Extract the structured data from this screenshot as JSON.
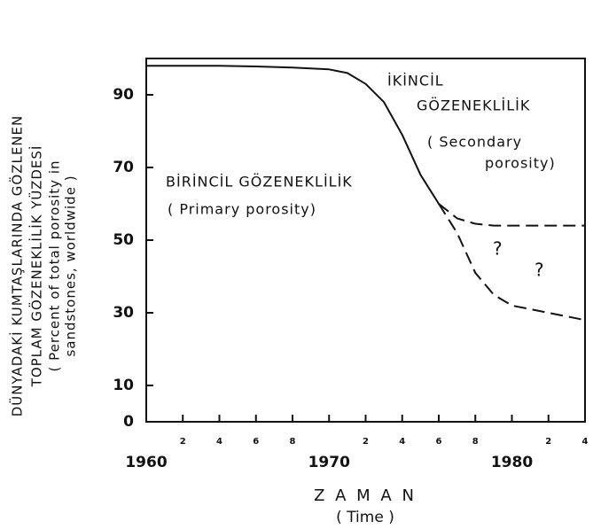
{
  "chart_data": {
    "type": "line",
    "y_axis_label": [
      "DÜNYADAKİ KUMTAŞLARINDA GÖZLENEN",
      "TOPLAM GÖZENEKLİLİK YÜZDESİ",
      "( Percent of total porosity in",
      "sandstones, worldwide )"
    ],
    "x_axis_label": [
      "Z A M A N",
      "( Time )"
    ],
    "annotations": [
      "İKİNCİL",
      "GÖZENEKLİLİK",
      "( Secondary",
      "porosity)",
      "BİRİNCİL GÖZENEKLİLİK",
      "( Primary porosity)",
      "?",
      "?"
    ],
    "x": [
      1960,
      1962,
      1964,
      1966,
      1968,
      1970,
      1971,
      1972,
      1973,
      1974,
      1975,
      1976,
      1977,
      1978,
      1979,
      1980,
      1982,
      1984
    ],
    "series": [
      {
        "style": "solid",
        "color": "#111111",
        "values": [
          98,
          98,
          98,
          97.8,
          97.5,
          97,
          96,
          93,
          88,
          79,
          68,
          60,
          null,
          null,
          null,
          null,
          null,
          null
        ]
      },
      {
        "style": "dashed",
        "color": "#111111",
        "values": [
          null,
          null,
          null,
          null,
          null,
          null,
          null,
          null,
          null,
          null,
          null,
          60,
          56,
          54.5,
          54,
          54,
          54,
          54
        ]
      },
      {
        "style": "dashed",
        "color": "#111111",
        "values": [
          null,
          null,
          null,
          null,
          null,
          null,
          null,
          null,
          null,
          null,
          null,
          60,
          52,
          41,
          35,
          32,
          30,
          28
        ]
      }
    ],
    "xlim": [
      1960,
      1984
    ],
    "xticks": [
      1960,
      {
        "value": 1962,
        "label": "2"
      },
      {
        "value": 1964,
        "label": "4"
      },
      {
        "value": 1966,
        "label": "6"
      },
      {
        "value": 1968,
        "label": "8"
      },
      1970,
      {
        "value": 1972,
        "label": "2"
      },
      {
        "value": 1974,
        "label": "4"
      },
      {
        "value": 1976,
        "label": "6"
      },
      {
        "value": 1978,
        "label": "8"
      },
      1980,
      {
        "value": 1982,
        "label": "2"
      },
      {
        "value": 1984,
        "label": "4"
      }
    ],
    "ylim": [
      0,
      100
    ],
    "yticks": [
      0,
      10,
      30,
      50,
      70,
      90
    ]
  }
}
